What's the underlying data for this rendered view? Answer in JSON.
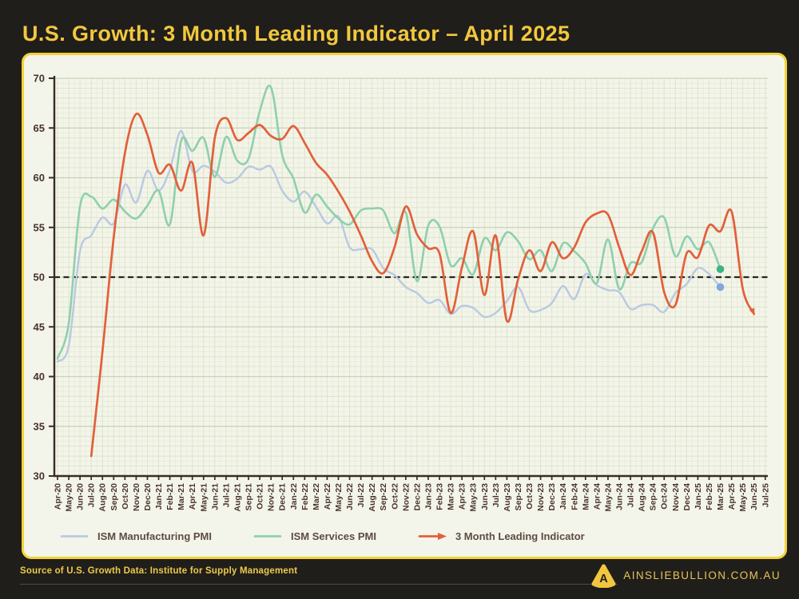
{
  "page": {
    "title": "U.S. Growth: 3 Month Leading Indicator – April 2025",
    "footer": {
      "source": "Source of U.S. Growth Data: Institute for Supply Management",
      "brand": "AINSLIEBULLION.COM.AU",
      "logo_letter": "A"
    }
  },
  "colors": {
    "page_bg": "#201e1b",
    "panel_bg": "#f4f5ea",
    "panel_border": "#f2d23a",
    "title_text": "#f2c83e",
    "axis": "#3a2b25",
    "tick_label": "#46332c",
    "grid_fine": "#e9eddb",
    "grid_unit": "#dee5ce",
    "grid_major": "#c7d3b8",
    "reference_line": "#2b2522",
    "legend_text": "#5d4b43",
    "source_text": "#eccb4a",
    "brand_text": "#e7c558",
    "logo_yellow": "#f2c63e"
  },
  "chart_data": {
    "type": "line",
    "title": "U.S. Growth: 3 Month Leading Indicator – April 2025",
    "xlabel": "",
    "ylabel": "",
    "ylim": [
      30,
      70
    ],
    "y_ticks": [
      30,
      35,
      40,
      45,
      50,
      55,
      60,
      65,
      70
    ],
    "reference_line_y": 50,
    "grid": true,
    "legend_position": "bottom",
    "x_labels": [
      "Apr-20",
      "May-20",
      "Jun-20",
      "Jul-20",
      "Aug-20",
      "Sep-20",
      "Oct-20",
      "Nov-20",
      "Dec-20",
      "Jan-21",
      "Feb-21",
      "Mar-21",
      "Apr-21",
      "May-21",
      "Jun-21",
      "Jul-21",
      "Aug-21",
      "Sep-21",
      "Oct-21",
      "Nov-21",
      "Dec-21",
      "Jan-22",
      "Feb-22",
      "Mar-22",
      "Apr-22",
      "May-22",
      "Jun-22",
      "Jul-22",
      "Aug-22",
      "Sep-22",
      "Oct-22",
      "Nov-22",
      "Dec-22",
      "Jan-23",
      "Feb-23",
      "Mar-23",
      "Apr-23",
      "May-23",
      "Jun-23",
      "Jul-23",
      "Aug-23",
      "Sep-23",
      "Oct-23",
      "Nov-23",
      "Dec-23",
      "Jan-24",
      "Feb-24",
      "Mar-24",
      "Apr-24",
      "May-24",
      "Jun-24",
      "Jul-24",
      "Aug-24",
      "Sep-24",
      "Oct-24",
      "Nov-24",
      "Dec-24",
      "Jan-25",
      "Feb-25",
      "Mar-25",
      "Apr-25",
      "May-25",
      "Jun-25",
      "Jul-25"
    ],
    "series": [
      {
        "name": "ISM Manufacturing PMI",
        "color": "#b9c9e2",
        "stroke_width": 2.4,
        "start_index": 0,
        "end_dot": true,
        "dot_color": "#84a5e0",
        "values": [
          41.5,
          43.1,
          52.6,
          54.2,
          56.0,
          55.4,
          59.3,
          57.5,
          60.7,
          58.7,
          60.8,
          64.7,
          60.7,
          61.2,
          60.6,
          59.5,
          59.9,
          61.1,
          60.8,
          61.1,
          58.7,
          57.6,
          58.6,
          57.1,
          55.4,
          56.1,
          53.0,
          52.8,
          52.8,
          50.9,
          50.2,
          49.0,
          48.4,
          47.4,
          47.7,
          46.3,
          47.1,
          46.9,
          46.0,
          46.4,
          47.6,
          49.0,
          46.7,
          46.7,
          47.4,
          49.1,
          47.8,
          50.3,
          49.2,
          48.7,
          48.5,
          46.8,
          47.2,
          47.2,
          46.5,
          48.4,
          49.3,
          50.9,
          50.3,
          49.0
        ]
      },
      {
        "name": "ISM Services PMI",
        "color": "#8ed0ad",
        "stroke_width": 2.6,
        "start_index": 0,
        "end_dot": true,
        "dot_color": "#3db384",
        "values": [
          41.8,
          45.4,
          57.1,
          58.1,
          56.9,
          57.8,
          56.6,
          55.9,
          57.2,
          58.7,
          55.3,
          63.7,
          62.7,
          64.0,
          60.1,
          64.1,
          61.7,
          61.9,
          66.7,
          69.1,
          62.3,
          59.9,
          56.5,
          58.3,
          57.1,
          55.9,
          55.3,
          56.7,
          56.9,
          56.7,
          54.4,
          56.5,
          49.6,
          55.2,
          55.1,
          51.2,
          51.9,
          50.3,
          53.9,
          52.7,
          54.5,
          53.6,
          51.8,
          52.7,
          50.6,
          53.4,
          52.6,
          51.4,
          49.4,
          53.8,
          48.8,
          51.4,
          51.5,
          54.9,
          56.0,
          52.1,
          54.1,
          52.8,
          53.5,
          50.8
        ]
      },
      {
        "name": "3 Month Leading Indicator",
        "color": "#e2603a",
        "stroke_width": 2.7,
        "start_index": 3,
        "end_arrow": true,
        "values": [
          32.0,
          42.5,
          54.0,
          62.5,
          66.4,
          64.3,
          60.5,
          61.3,
          58.7,
          61.5,
          54.2,
          64.0,
          66.0,
          63.8,
          64.5,
          65.3,
          64.2,
          63.9,
          65.2,
          63.5,
          61.5,
          60.3,
          58.6,
          56.6,
          54.2,
          51.6,
          50.4,
          53.0,
          57.1,
          54.3,
          52.9,
          52.4,
          46.4,
          51.0,
          54.6,
          48.2,
          54.2,
          45.6,
          49.8,
          52.7,
          50.6,
          53.5,
          51.9,
          53.0,
          55.5,
          56.4,
          56.3,
          53.0,
          50.2,
          52.6,
          54.5,
          48.5,
          47.2,
          52.4,
          52.0,
          55.2,
          54.6,
          56.6,
          48.8,
          46.3
        ]
      }
    ]
  }
}
